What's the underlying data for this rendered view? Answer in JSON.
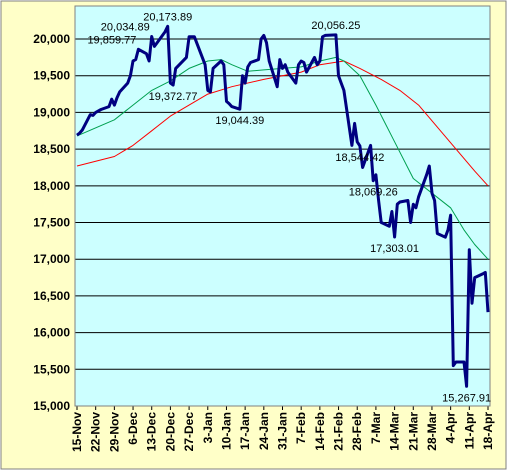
{
  "chart_data": {
    "type": "line",
    "xlim": [
      "15-Nov",
      "18-Apr"
    ],
    "xticks": [
      "15-Nov",
      "22-Nov",
      "29-Nov",
      "6-Dec",
      "13-Dec",
      "20-Dec",
      "27-Dec",
      "3-Jan",
      "10-Jan",
      "17-Jan",
      "24-Jan",
      "31-Jan",
      "7-Feb",
      "14-Feb",
      "21-Feb",
      "28-Feb",
      "7-Mar",
      "14-Mar",
      "21-Mar",
      "28-Mar",
      "4-Apr",
      "11-Apr",
      "18-Apr"
    ],
    "ylim": [
      15000,
      20450
    ],
    "yticks": [
      {
        "value": 15000,
        "label": "15,000"
      },
      {
        "value": 15500,
        "label": "15,500"
      },
      {
        "value": 16000,
        "label": "16,000"
      },
      {
        "value": 16500,
        "label": "16,500"
      },
      {
        "value": 17000,
        "label": "17,000"
      },
      {
        "value": 17500,
        "label": "17,500"
      },
      {
        "value": 18000,
        "label": "18,000"
      },
      {
        "value": 18500,
        "label": "18,500"
      },
      {
        "value": 19000,
        "label": "19,000"
      },
      {
        "value": 19500,
        "label": "19,500"
      },
      {
        "value": 20000,
        "label": "20,000"
      }
    ],
    "grid": true,
    "series": [
      {
        "color": "#000080",
        "x": [
          "15-Nov",
          "16-Nov",
          "17-Nov",
          "20-Nov",
          "21-Nov",
          "22-Nov",
          "24-Nov",
          "27-Nov",
          "28-Nov",
          "29-Nov",
          "30-Nov",
          "1-Dec",
          "4-Dec",
          "5-Dec",
          "6-Dec",
          "7-Dec",
          "8-Dec",
          "11-Dec",
          "12-Dec",
          "13-Dec",
          "14-Dec",
          "15-Dec",
          "18-Dec",
          "19-Dec",
          "20-Dec",
          "21-Dec",
          "22-Dec",
          "26-Dec",
          "27-Dec",
          "28-Dec",
          "29-Dec",
          "2-Jan",
          "3-Jan",
          "4-Jan",
          "5-Jan",
          "8-Jan",
          "9-Jan",
          "10-Jan",
          "11-Jan",
          "12-Jan",
          "15-Jan",
          "16-Jan",
          "17-Jan",
          "18-Jan",
          "19-Jan",
          "22-Jan",
          "23-Jan",
          "24-Jan",
          "25-Jan",
          "26-Jan",
          "29-Jan",
          "30-Jan",
          "31-Jan",
          "1-Feb",
          "2-Feb",
          "5-Feb",
          "6-Feb",
          "7-Feb",
          "8-Feb",
          "9-Feb",
          "12-Feb",
          "13-Feb",
          "14-Feb",
          "15-Feb",
          "16-Feb",
          "20-Feb",
          "21-Feb",
          "22-Feb",
          "23-Feb",
          "26-Feb",
          "27-Feb",
          "28-Feb",
          "1-Mar",
          "2-Mar",
          "5-Mar",
          "6-Mar",
          "7-Mar",
          "8-Mar",
          "9-Mar",
          "12-Mar",
          "13-Mar",
          "14-Mar",
          "15-Mar",
          "16-Mar",
          "19-Mar",
          "20-Mar",
          "21-Mar",
          "22-Mar",
          "23-Mar",
          "26-Mar",
          "27-Mar",
          "28-Mar",
          "29-Mar",
          "30-Mar",
          "2-Apr",
          "3-Apr",
          "4-Apr",
          "5-Apr",
          "6-Apr",
          "9-Apr",
          "10-Apr",
          "11-Apr",
          "12-Apr",
          "13-Apr",
          "16-Apr",
          "17-Apr",
          "18-Apr"
        ],
        "values": [
          18690,
          18720,
          18760,
          18970,
          18960,
          19000,
          19040,
          19080,
          19180,
          19100,
          19200,
          19280,
          19400,
          19500,
          19700,
          19720,
          19859.77,
          19800,
          19700,
          20034.89,
          19900,
          19950,
          20100,
          20173.89,
          19400,
          19372.77,
          19600,
          19750,
          20030,
          20030,
          20030,
          19650,
          19300,
          19280,
          19600,
          19700,
          19650,
          19150,
          19120,
          19080,
          19044.39,
          19500,
          19400,
          19620,
          19680,
          19720,
          20000,
          20050,
          19950,
          19700,
          19350,
          19720,
          19600,
          19650,
          19550,
          19400,
          19650,
          19700,
          19680,
          19550,
          19750,
          19650,
          19700,
          20030,
          20050,
          20056.25,
          19500,
          19400,
          19300,
          18550,
          18850,
          18600,
          18544.42,
          18250,
          18550,
          18069.26,
          18150,
          17800,
          17500,
          17450,
          17650,
          17303.01,
          17750,
          17780,
          17800,
          17500,
          17750,
          17700,
          17850,
          18150,
          18270,
          17900,
          17800,
          17350,
          17300,
          17400,
          17600,
          15550,
          15600,
          15600,
          15267.91,
          17130,
          16400,
          16750,
          16800,
          16820,
          16280
        ],
        "value_labels": [
          null,
          null,
          null,
          null,
          null,
          null,
          null,
          null,
          null,
          null,
          null,
          null,
          null,
          null,
          null,
          null,
          "19,859.77",
          null,
          null,
          "20,034.89",
          null,
          null,
          null,
          "20,173.89",
          null,
          "19,372.77",
          null,
          null,
          null,
          null,
          null,
          null,
          null,
          null,
          null,
          null,
          null,
          null,
          null,
          null,
          "19,044.39",
          null,
          null,
          null,
          null,
          null,
          null,
          null,
          null,
          null,
          null,
          null,
          null,
          null,
          null,
          null,
          null,
          null,
          null,
          null,
          null,
          null,
          null,
          null,
          null,
          "20,056.25",
          null,
          null,
          null,
          null,
          null,
          null,
          "18,544.42",
          null,
          null,
          "18,069.26",
          null,
          null,
          null,
          null,
          null,
          "17,303.01",
          null,
          null,
          null,
          null,
          null,
          null,
          null,
          null,
          null,
          null,
          null,
          null,
          null,
          null,
          null,
          null,
          null,
          null,
          "15,267.91",
          null,
          null,
          null,
          null,
          null,
          null
        ]
      },
      {
        "color": "#00a050",
        "x": [
          "15-Nov",
          "29-Nov",
          "6-Dec",
          "13-Dec",
          "20-Dec",
          "27-Dec",
          "3-Jan",
          "8-Jan",
          "12-Jan",
          "18-Jan",
          "24-Jan",
          "31-Jan",
          "7-Feb",
          "14-Feb",
          "20-Feb",
          "23-Feb",
          "1-Mar",
          "7-Mar",
          "14-Mar",
          "21-Mar",
          "28-Mar",
          "4-Apr",
          "9-Apr",
          "13-Apr",
          "18-Apr"
        ],
        "values": [
          18680,
          18900,
          19100,
          19300,
          19430,
          19600,
          19700,
          19720,
          19650,
          19560,
          19580,
          19600,
          19620,
          19700,
          19750,
          19700,
          19500,
          19100,
          18600,
          18100,
          17900,
          17700,
          17400,
          17200,
          17000
        ]
      },
      {
        "color": "#ff0000",
        "x": [
          "15-Nov",
          "29-Nov",
          "6-Dec",
          "13-Dec",
          "20-Dec",
          "27-Dec",
          "3-Jan",
          "12-Jan",
          "24-Jan",
          "7-Feb",
          "14-Feb",
          "23-Feb",
          "1-Mar",
          "9-Mar",
          "16-Mar",
          "23-Mar",
          "30-Mar",
          "6-Apr",
          "13-Apr",
          "18-Apr"
        ],
        "values": [
          18270,
          18400,
          18550,
          18750,
          18950,
          19100,
          19250,
          19350,
          19450,
          19550,
          19650,
          19700,
          19600,
          19450,
          19300,
          19100,
          18800,
          18500,
          18200,
          18000
        ]
      }
    ]
  }
}
